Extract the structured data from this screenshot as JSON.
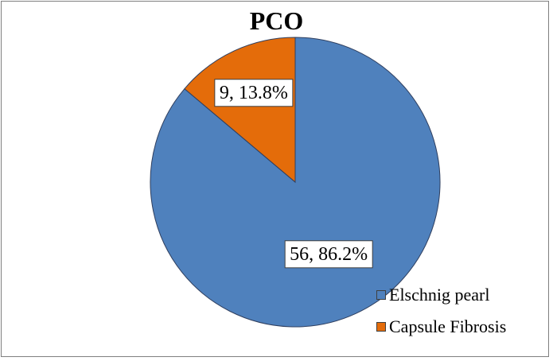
{
  "chart_data": {
    "type": "pie",
    "title": "PCO",
    "slices": [
      {
        "name": "Elschnig pearl",
        "value": 56,
        "percent": 86.2,
        "label": "56, 86.2%",
        "color": "#4f81bd"
      },
      {
        "name": "Capsule Fibrosis",
        "value": 9,
        "percent": 13.8,
        "label": "9, 13.8%",
        "color": "#e46c0a"
      }
    ],
    "start": "top, clockwise",
    "legend_position": "bottom-right"
  }
}
